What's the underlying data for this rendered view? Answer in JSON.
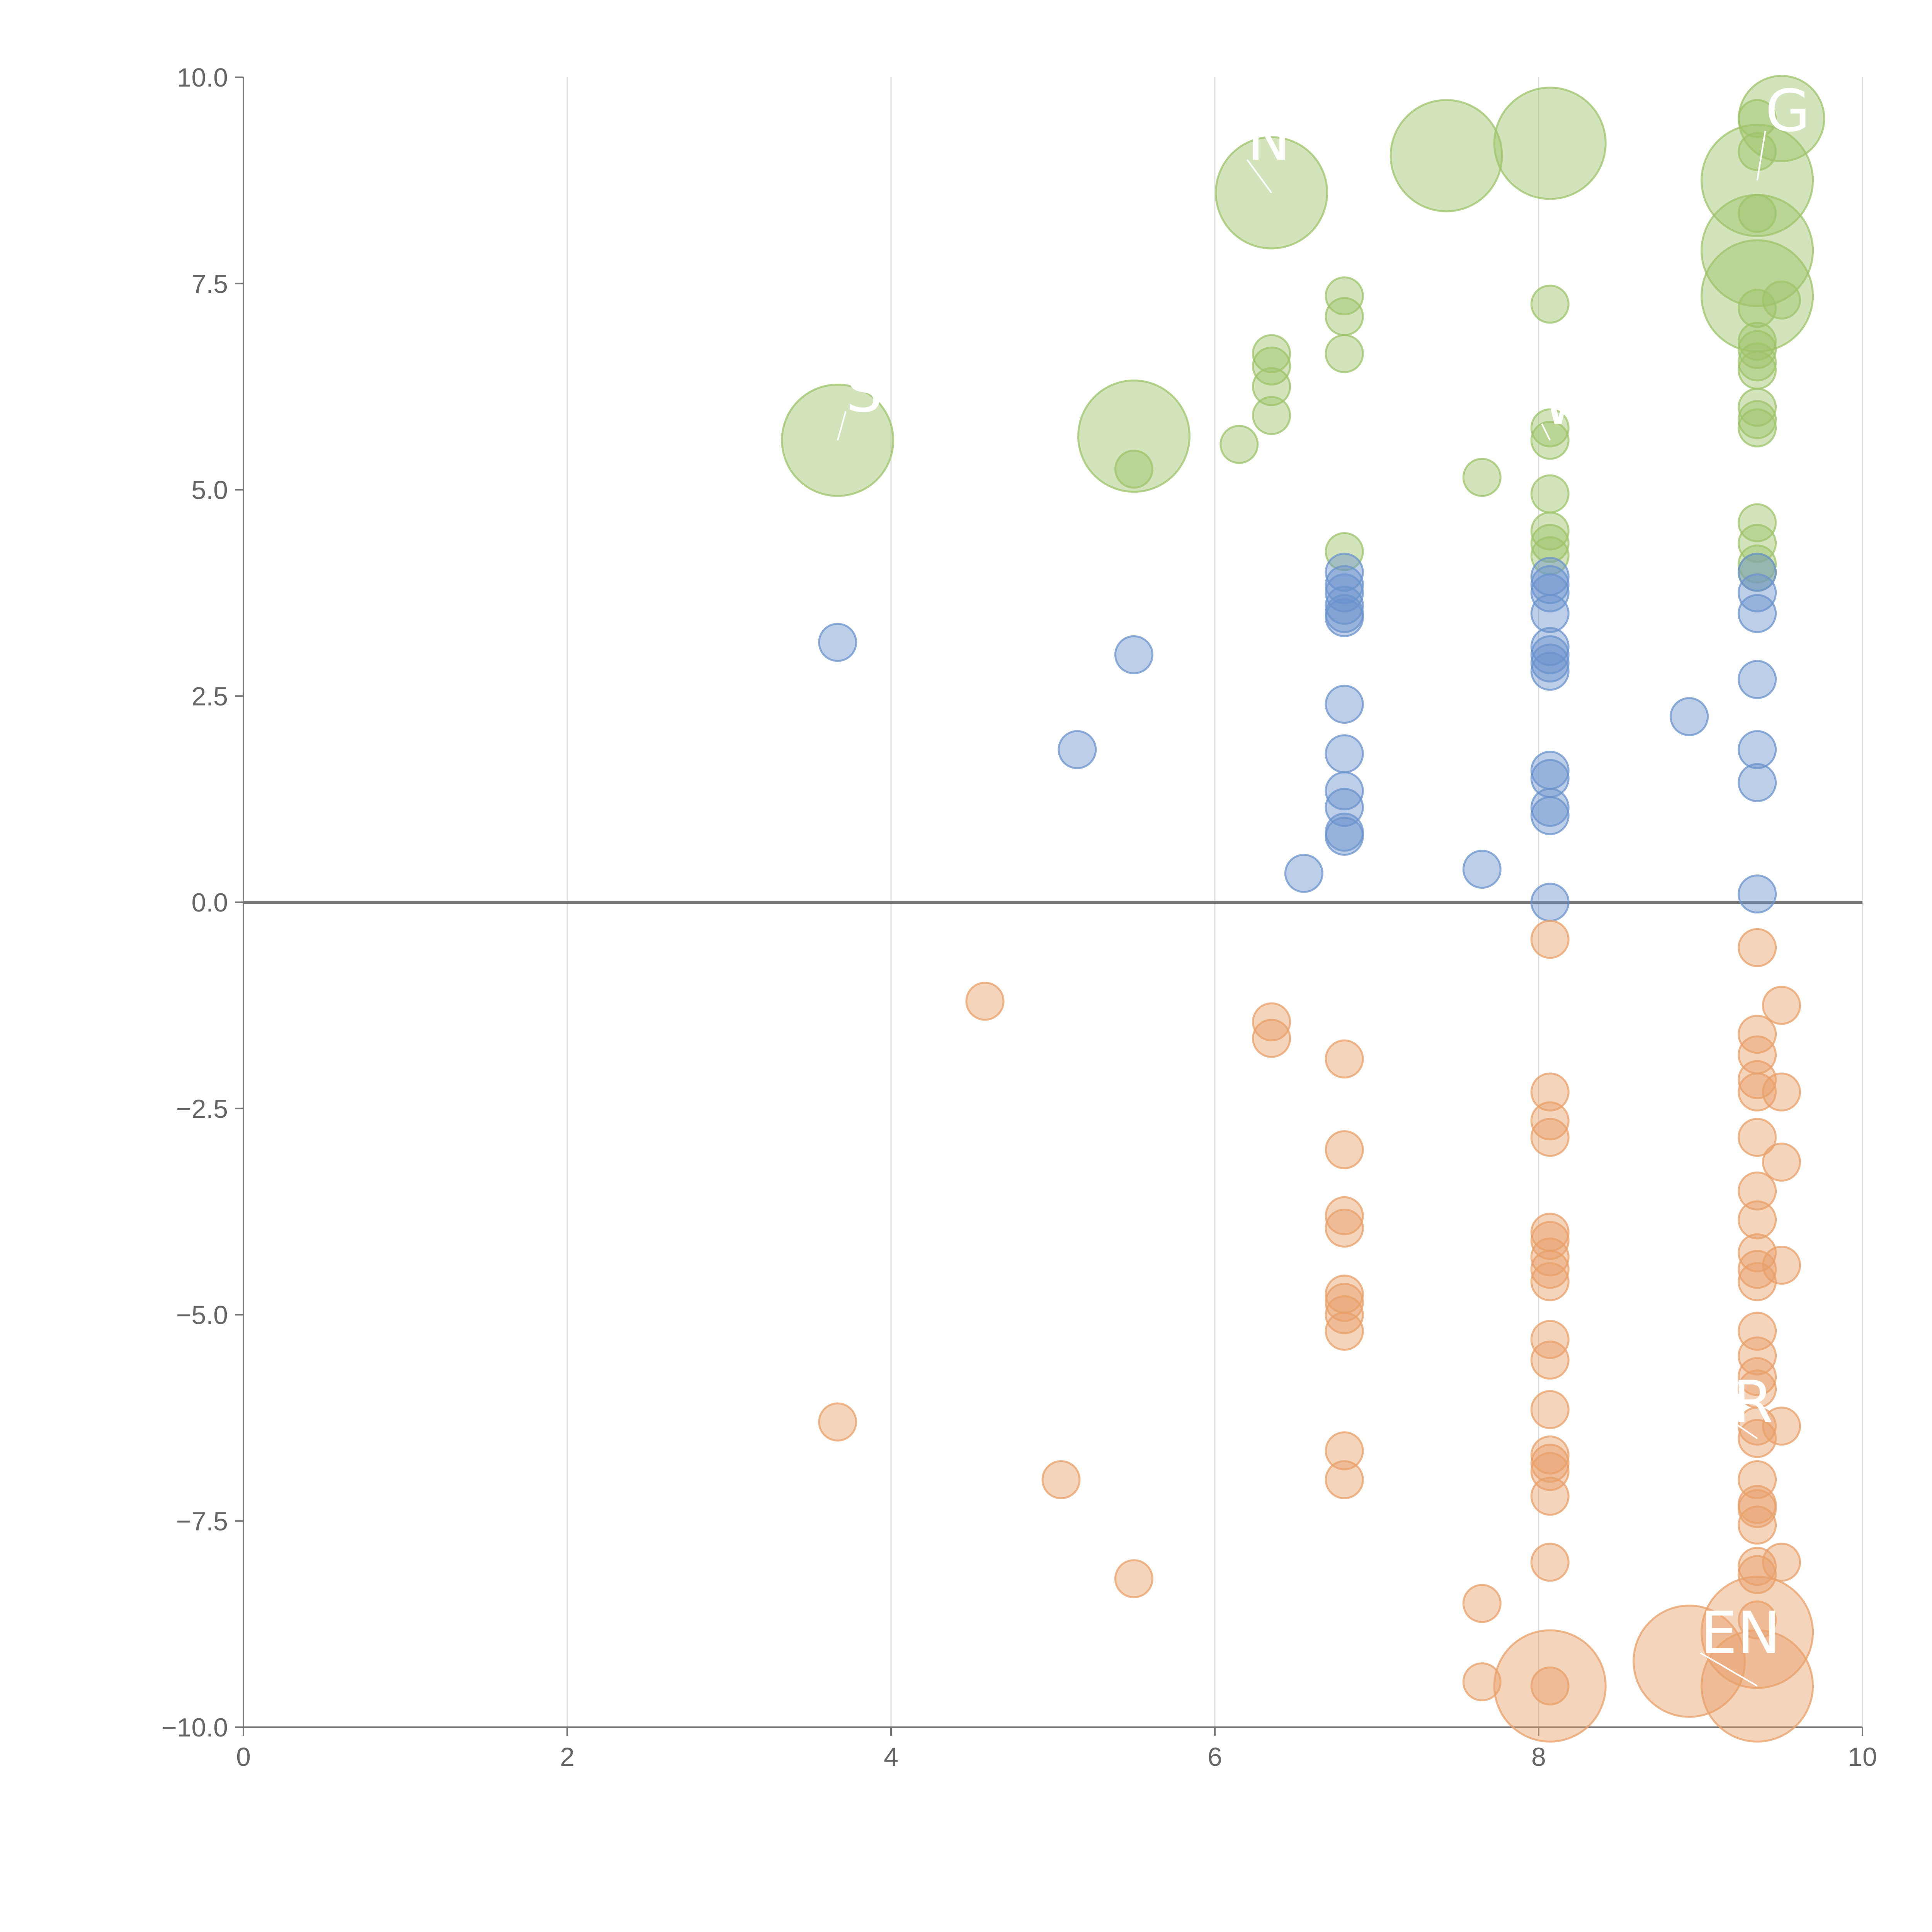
{
  "chart_data": {
    "type": "scatter",
    "title": "",
    "xlabel": "",
    "ylabel": "",
    "xlim": [
      0,
      10
    ],
    "ylim": [
      -10,
      10
    ],
    "x_ticks": [
      "0",
      "2",
      "4",
      "6",
      "8",
      "10"
    ],
    "y_ticks": [
      "10.0",
      "7.5",
      "5.0",
      "2.5",
      "0.0",
      "−2.5",
      "−5.0",
      "−7.5",
      "−10.0"
    ],
    "grid": "vertical",
    "reference_line_y": 0,
    "colors": {
      "green": "#9dc36a",
      "blue": "#6b93cc",
      "orange": "#e8a06a"
    },
    "series": [
      {
        "name": "green",
        "points": [
          [
            3.67,
            5.6,
            3
          ],
          [
            5.5,
            5.65,
            3
          ],
          [
            6.35,
            8.6,
            3
          ],
          [
            7.43,
            9.05,
            3
          ],
          [
            8.07,
            9.2,
            3
          ],
          [
            9.35,
            8.75,
            3
          ],
          [
            9.35,
            7.9,
            3
          ],
          [
            9.35,
            7.35,
            3
          ],
          [
            9.5,
            9.5,
            2.3
          ],
          [
            5.5,
            5.25,
            1
          ],
          [
            6.15,
            5.55,
            1
          ],
          [
            6.35,
            6.65,
            1
          ],
          [
            6.35,
            6.5,
            1
          ],
          [
            6.35,
            6.25,
            1
          ],
          [
            6.35,
            5.9,
            1
          ],
          [
            6.8,
            7.35,
            1
          ],
          [
            6.8,
            7.1,
            1
          ],
          [
            6.8,
            6.65,
            1
          ],
          [
            6.8,
            4.25,
            1
          ],
          [
            7.65,
            5.15,
            1
          ],
          [
            8.07,
            7.25,
            1
          ],
          [
            8.07,
            5.75,
            1
          ],
          [
            8.07,
            5.6,
            1
          ],
          [
            8.07,
            4.95,
            1
          ],
          [
            8.07,
            4.5,
            1
          ],
          [
            8.07,
            4.35,
            1
          ],
          [
            8.07,
            4.2,
            1
          ],
          [
            9.35,
            9.5,
            1
          ],
          [
            9.35,
            9.1,
            1
          ],
          [
            9.35,
            8.35,
            1
          ],
          [
            9.35,
            7.2,
            1
          ],
          [
            9.35,
            6.8,
            1
          ],
          [
            9.35,
            6.7,
            1
          ],
          [
            9.35,
            6.55,
            1
          ],
          [
            9.35,
            6.45,
            1
          ],
          [
            9.35,
            6.0,
            1
          ],
          [
            9.35,
            5.85,
            1
          ],
          [
            9.35,
            5.75,
            1
          ],
          [
            9.35,
            4.6,
            1
          ],
          [
            9.35,
            4.35,
            1
          ],
          [
            9.35,
            4.1,
            1
          ],
          [
            9.35,
            4.0,
            1
          ],
          [
            9.5,
            7.3,
            1
          ]
        ]
      },
      {
        "name": "blue",
        "points": [
          [
            3.67,
            3.15,
            1
          ],
          [
            5.15,
            1.85,
            1
          ],
          [
            5.5,
            3.0,
            1
          ],
          [
            6.55,
            0.35,
            1
          ],
          [
            6.8,
            4.0,
            1
          ],
          [
            6.8,
            3.85,
            1
          ],
          [
            6.8,
            3.75,
            1
          ],
          [
            6.8,
            3.6,
            1
          ],
          [
            6.8,
            3.5,
            1
          ],
          [
            6.8,
            3.45,
            1
          ],
          [
            6.8,
            2.4,
            1
          ],
          [
            6.8,
            1.8,
            1
          ],
          [
            6.8,
            1.35,
            1
          ],
          [
            6.8,
            1.15,
            1
          ],
          [
            6.8,
            0.85,
            1
          ],
          [
            6.8,
            0.8,
            1
          ],
          [
            7.65,
            0.4,
            1
          ],
          [
            8.07,
            3.95,
            1
          ],
          [
            8.07,
            3.85,
            1
          ],
          [
            8.07,
            3.75,
            1
          ],
          [
            8.07,
            3.5,
            1
          ],
          [
            8.07,
            3.1,
            1
          ],
          [
            8.07,
            3.0,
            1
          ],
          [
            8.07,
            2.9,
            1
          ],
          [
            8.07,
            2.8,
            1
          ],
          [
            8.07,
            1.6,
            1
          ],
          [
            8.07,
            1.5,
            1
          ],
          [
            8.07,
            1.15,
            1
          ],
          [
            8.07,
            1.05,
            1
          ],
          [
            8.07,
            0.0,
            1
          ],
          [
            8.93,
            2.25,
            1
          ],
          [
            9.35,
            4.0,
            1
          ],
          [
            9.35,
            3.75,
            1
          ],
          [
            9.35,
            3.5,
            1
          ],
          [
            9.35,
            2.7,
            1
          ],
          [
            9.35,
            1.85,
            1
          ],
          [
            9.35,
            1.45,
            1
          ],
          [
            9.35,
            0.1,
            1
          ]
        ]
      },
      {
        "name": "orange",
        "points": [
          [
            8.07,
            -9.5,
            3
          ],
          [
            8.93,
            -9.2,
            3
          ],
          [
            9.35,
            -8.85,
            3
          ],
          [
            9.35,
            -9.5,
            3
          ],
          [
            3.67,
            -6.3,
            1
          ],
          [
            4.58,
            -1.2,
            1
          ],
          [
            5.05,
            -7.0,
            1
          ],
          [
            5.5,
            -8.2,
            1
          ],
          [
            6.35,
            -1.45,
            1
          ],
          [
            6.35,
            -1.65,
            1
          ],
          [
            6.8,
            -1.9,
            1
          ],
          [
            6.8,
            -3.0,
            1
          ],
          [
            6.8,
            -3.8,
            1
          ],
          [
            6.8,
            -3.95,
            1
          ],
          [
            6.8,
            -4.75,
            1
          ],
          [
            6.8,
            -4.85,
            1
          ],
          [
            6.8,
            -5.0,
            1
          ],
          [
            6.8,
            -5.2,
            1
          ],
          [
            6.8,
            -6.65,
            1
          ],
          [
            6.8,
            -7.0,
            1
          ],
          [
            7.65,
            -8.5,
            1
          ],
          [
            7.65,
            -9.45,
            1
          ],
          [
            8.07,
            -0.45,
            1
          ],
          [
            8.07,
            -2.3,
            1
          ],
          [
            8.07,
            -2.65,
            1
          ],
          [
            8.07,
            -2.85,
            1
          ],
          [
            8.07,
            -4.0,
            1
          ],
          [
            8.07,
            -4.1,
            1
          ],
          [
            8.07,
            -4.3,
            1
          ],
          [
            8.07,
            -4.45,
            1
          ],
          [
            8.07,
            -4.6,
            1
          ],
          [
            8.07,
            -5.3,
            1
          ],
          [
            8.07,
            -5.55,
            1
          ],
          [
            8.07,
            -6.15,
            1
          ],
          [
            8.07,
            -6.7,
            1
          ],
          [
            8.07,
            -6.8,
            1
          ],
          [
            8.07,
            -6.9,
            1
          ],
          [
            8.07,
            -7.2,
            1
          ],
          [
            8.07,
            -8.0,
            1
          ],
          [
            8.07,
            -9.5,
            1
          ],
          [
            9.35,
            -0.55,
            1
          ],
          [
            9.35,
            -1.6,
            1
          ],
          [
            9.35,
            -1.85,
            1
          ],
          [
            9.35,
            -2.15,
            1
          ],
          [
            9.35,
            -2.3,
            1
          ],
          [
            9.35,
            -2.85,
            1
          ],
          [
            9.35,
            -3.5,
            1
          ],
          [
            9.35,
            -3.85,
            1
          ],
          [
            9.35,
            -4.25,
            1
          ],
          [
            9.35,
            -4.45,
            1
          ],
          [
            9.35,
            -4.6,
            1
          ],
          [
            9.35,
            -5.2,
            1
          ],
          [
            9.35,
            -5.5,
            1
          ],
          [
            9.35,
            -5.75,
            1
          ],
          [
            9.35,
            -5.9,
            1
          ],
          [
            9.35,
            -6.35,
            1
          ],
          [
            9.35,
            -6.5,
            1
          ],
          [
            9.35,
            -7.0,
            1
          ],
          [
            9.35,
            -7.3,
            1
          ],
          [
            9.35,
            -7.35,
            1
          ],
          [
            9.35,
            -7.55,
            1
          ],
          [
            9.35,
            -8.05,
            1
          ],
          [
            9.35,
            -8.15,
            1
          ],
          [
            9.35,
            -8.7,
            1
          ],
          [
            9.5,
            -1.25,
            1
          ],
          [
            9.5,
            -2.3,
            1
          ],
          [
            9.5,
            -3.15,
            1
          ],
          [
            9.5,
            -4.4,
            1
          ],
          [
            9.5,
            -6.35,
            1
          ],
          [
            9.5,
            -8.0,
            1
          ]
        ]
      }
    ],
    "annotations": [
      {
        "text": "S",
        "x": 3.67,
        "y": 5.6,
        "dx": 0.05,
        "dy": 0.35
      },
      {
        "text": "N",
        "x": 6.35,
        "y": 8.6,
        "dx": -0.15,
        "dy": 0.4
      },
      {
        "text": "G",
        "x": 9.35,
        "y": 8.75,
        "dx": 0.05,
        "dy": 0.6
      },
      {
        "text": "W",
        "x": 8.07,
        "y": 5.6,
        "dx": -0.05,
        "dy": 0.2
      },
      {
        "text": "R",
        "x": 9.35,
        "y": -6.5,
        "dx": -0.15,
        "dy": 0.2
      },
      {
        "text": "EN",
        "x": 9.35,
        "y": -9.5,
        "dx": -0.35,
        "dy": 0.4
      }
    ]
  }
}
